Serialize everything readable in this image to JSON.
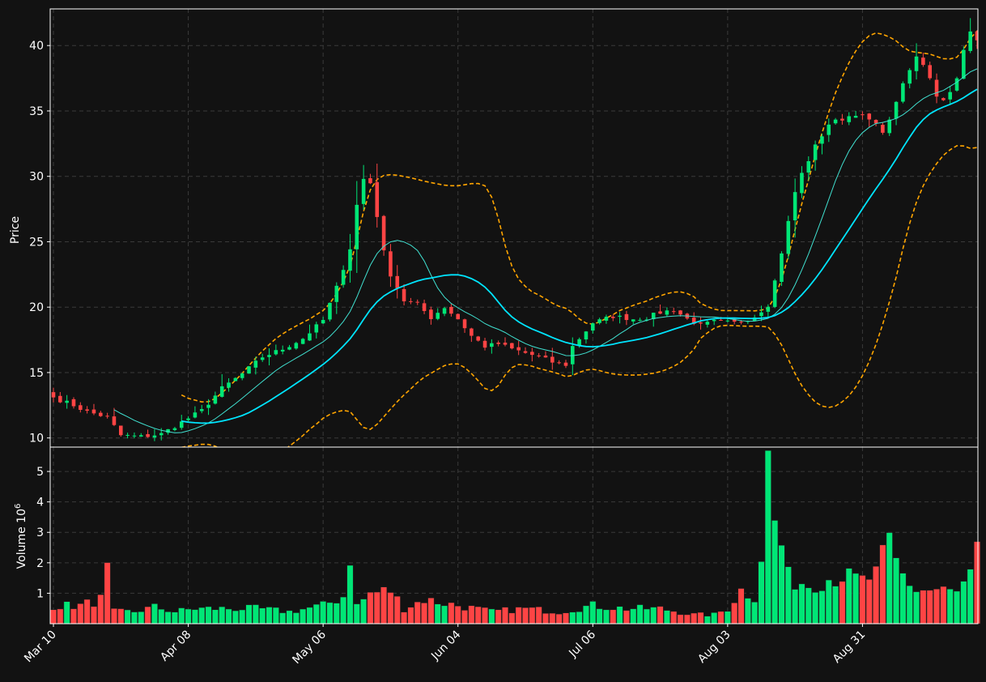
{
  "chart_data": {
    "type": "candlestick",
    "xtick_labels": [
      "Mar 10",
      "Apr 08",
      "May 06",
      "Jun 04",
      "Jul 06",
      "Aug 03",
      "Aug 31"
    ],
    "price_panel": {
      "ylabel": "Price",
      "yticks": [
        10,
        15,
        20,
        25,
        30,
        35,
        40
      ],
      "ylim": [
        9.3,
        42.8
      ],
      "grid": true
    },
    "volume_panel": {
      "ylabel": "Volume  10",
      "ylabel_exp": "6",
      "yticks": [
        1,
        2,
        3,
        4,
        5
      ],
      "ylim": [
        0,
        5.8
      ],
      "grid": true
    },
    "colors": {
      "background": "#121212",
      "up": "#00e676",
      "down": "#ff4444",
      "ma_short": "#40e0d0",
      "ma_long": "#00e5ff",
      "bands": "#ffa500",
      "text": "#ffffff"
    },
    "ohlc_waypoints": [
      [
        0,
        13.1
      ],
      [
        3,
        12.5
      ],
      [
        5,
        12.0
      ],
      [
        8,
        11.6
      ],
      [
        10,
        10.2
      ],
      [
        13,
        10.1
      ],
      [
        16,
        10.3
      ],
      [
        19,
        11.2
      ],
      [
        22,
        12.1
      ],
      [
        25,
        13.8
      ],
      [
        28,
        14.9
      ],
      [
        31,
        16.2
      ],
      [
        34,
        16.8
      ],
      [
        37,
        17.6
      ],
      [
        40,
        19.0
      ],
      [
        42,
        21.5
      ],
      [
        44,
        24.5
      ],
      [
        45,
        27.8
      ],
      [
        46,
        29.8
      ],
      [
        47,
        29.5
      ],
      [
        48,
        27.0
      ],
      [
        49,
        24.2
      ],
      [
        50,
        22.5
      ],
      [
        52,
        20.5
      ],
      [
        54,
        20.2
      ],
      [
        56,
        19.2
      ],
      [
        58,
        20.0
      ],
      [
        60,
        19.1
      ],
      [
        62,
        17.8
      ],
      [
        64,
        17.0
      ],
      [
        66,
        17.2
      ],
      [
        68,
        16.8
      ],
      [
        70,
        16.5
      ],
      [
        72,
        16.2
      ],
      [
        74,
        15.8
      ],
      [
        76,
        15.6
      ],
      [
        77,
        17.0
      ],
      [
        80,
        18.8
      ],
      [
        83,
        19.3
      ],
      [
        86,
        19.1
      ],
      [
        88,
        19.2
      ],
      [
        90,
        19.6
      ],
      [
        92,
        19.8
      ],
      [
        94,
        19.1
      ],
      [
        96,
        18.6
      ],
      [
        98,
        18.9
      ],
      [
        101,
        18.8
      ],
      [
        104,
        19.3
      ],
      [
        106,
        20.2
      ],
      [
        107,
        22.0
      ],
      [
        108,
        24.2
      ],
      [
        109,
        26.5
      ],
      [
        110,
        28.8
      ],
      [
        111,
        30.2
      ],
      [
        113,
        32.3
      ],
      [
        115,
        34.0
      ],
      [
        117,
        34.4
      ],
      [
        119,
        34.8
      ],
      [
        121,
        34.3
      ],
      [
        123,
        33.5
      ],
      [
        124,
        34.2
      ],
      [
        125,
        35.8
      ],
      [
        127,
        38.1
      ],
      [
        128,
        39.1
      ],
      [
        129,
        38.6
      ],
      [
        130,
        37.6
      ],
      [
        131,
        36.2
      ],
      [
        132,
        35.8
      ],
      [
        134,
        37.4
      ],
      [
        135,
        39.6
      ],
      [
        136,
        41.0
      ],
      [
        137,
        40.4
      ]
    ],
    "volume_waypoints": [
      [
        0,
        0.6
      ],
      [
        4,
        0.6
      ],
      [
        7,
        0.8
      ],
      [
        8,
        1.7
      ],
      [
        9,
        0.4
      ],
      [
        12,
        0.4
      ],
      [
        15,
        0.55
      ],
      [
        18,
        0.4
      ],
      [
        21,
        0.5
      ],
      [
        25,
        0.5
      ],
      [
        30,
        0.5
      ],
      [
        35,
        0.4
      ],
      [
        40,
        0.6
      ],
      [
        43,
        0.9
      ],
      [
        44,
        2.3
      ],
      [
        45,
        0.6
      ],
      [
        47,
        1.0
      ],
      [
        50,
        1.1
      ],
      [
        52,
        0.5
      ],
      [
        55,
        0.8
      ],
      [
        60,
        0.6
      ],
      [
        65,
        0.4
      ],
      [
        70,
        0.5
      ],
      [
        75,
        0.4
      ],
      [
        80,
        0.6
      ],
      [
        85,
        0.5
      ],
      [
        90,
        0.5
      ],
      [
        95,
        0.3
      ],
      [
        98,
        0.3
      ],
      [
        100,
        0.5
      ],
      [
        102,
        1.1
      ],
      [
        104,
        0.9
      ],
      [
        105,
        2.3
      ],
      [
        106,
        5.3
      ],
      [
        107,
        3.3
      ],
      [
        108,
        2.6
      ],
      [
        109,
        1.5
      ],
      [
        112,
        1.3
      ],
      [
        115,
        1.5
      ],
      [
        117,
        1.6
      ],
      [
        118,
        1.5
      ],
      [
        120,
        1.4
      ],
      [
        122,
        1.6
      ],
      [
        124,
        2.6
      ],
      [
        125,
        2.0
      ],
      [
        126,
        1.6
      ],
      [
        128,
        1.1
      ],
      [
        132,
        1.1
      ],
      [
        134,
        1.0
      ],
      [
        136,
        1.5
      ],
      [
        137,
        2.3
      ]
    ],
    "n_candles": 138
  }
}
